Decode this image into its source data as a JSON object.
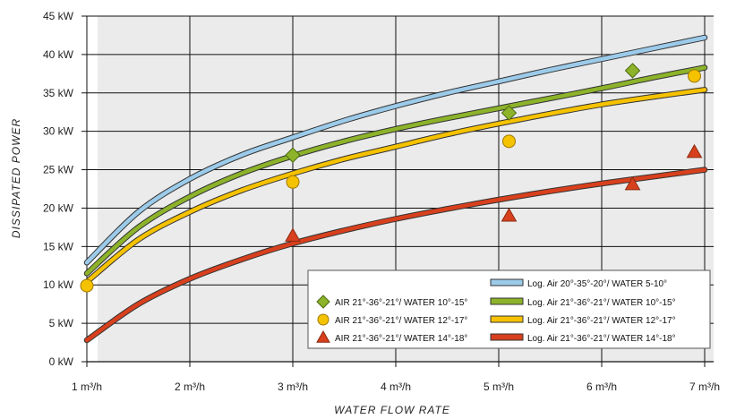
{
  "chart_data": {
    "type": "line",
    "xlabel": "WATER FLOW RATE",
    "ylabel": "DISSIPATED POWER",
    "xlim": [
      1,
      7
    ],
    "ylim": [
      0,
      45
    ],
    "x_ticks": [
      1,
      2,
      3,
      4,
      5,
      6,
      7
    ],
    "x_tick_labels": [
      "1 m³/h",
      "2 m³/h",
      "3 m³/h",
      "4 m³/h",
      "5 m³/h",
      "6 m³/h",
      "7 m³/h"
    ],
    "y_ticks": [
      0,
      5,
      10,
      15,
      20,
      25,
      30,
      35,
      40,
      45
    ],
    "y_tick_labels": [
      "0 kW",
      "5 kW",
      "10 kW",
      "15 kW",
      "20 kW",
      "25 kW",
      "30 kW",
      "35 kW",
      "40 kW",
      "45 kW"
    ],
    "grid": true,
    "legend_position": "bottom-right",
    "series": [
      {
        "name": "Log. Air 20°-35°-20°/ WATER 5-10°",
        "kind": "line",
        "color": "#9ccbea",
        "x": [
          1,
          1.5,
          2,
          2.5,
          3,
          3.5,
          4,
          4.5,
          5,
          5.5,
          6,
          6.5,
          7
        ],
        "values": [
          12.9,
          19.5,
          23.8,
          26.9,
          29.2,
          31.4,
          33.3,
          35.0,
          36.5,
          38.0,
          39.4,
          40.8,
          42.2
        ]
      },
      {
        "name": "Log. Air 21°-36°-21°/ WATER 10°-15°",
        "kind": "line",
        "color": "#8db32a",
        "x": [
          1,
          1.5,
          2,
          2.5,
          3,
          3.5,
          4,
          4.5,
          5,
          5.5,
          6,
          6.5,
          7
        ],
        "values": [
          11.5,
          17.5,
          21.5,
          24.5,
          26.8,
          28.7,
          30.3,
          31.7,
          33.0,
          34.3,
          35.6,
          37.0,
          38.3
        ]
      },
      {
        "name": "Log. Air 21°-36°-21°/ WATER 12°-17°",
        "kind": "line",
        "color": "#f5c200",
        "x": [
          1,
          1.5,
          2,
          2.5,
          3,
          3.5,
          4,
          4.5,
          5,
          5.5,
          6,
          6.5,
          7
        ],
        "values": [
          10.4,
          15.9,
          19.5,
          22.3,
          24.5,
          26.4,
          28.0,
          29.6,
          31.0,
          32.3,
          33.5,
          34.5,
          35.4
        ]
      },
      {
        "name": "Log. Air 21°-36°-21°/ WATER 14°-18°",
        "kind": "line",
        "color": "#d8401d",
        "x": [
          1,
          1.5,
          2,
          2.5,
          3,
          3.5,
          4,
          4.5,
          5,
          5.5,
          6,
          6.5,
          7
        ],
        "values": [
          2.8,
          7.5,
          10.8,
          13.3,
          15.4,
          17.1,
          18.6,
          19.9,
          21.1,
          22.2,
          23.2,
          24.1,
          25.0
        ]
      },
      {
        "name": "AIR 21°-36°-21°/ WATER 10°-15°",
        "kind": "scatter",
        "marker": "diamond",
        "color": "#8db32a",
        "x": [
          3,
          5.1,
          6.3
        ],
        "values": [
          26.9,
          32.4,
          37.9
        ]
      },
      {
        "name": "AIR 21°-36°-21°/ WATER 12°-17°",
        "kind": "scatter",
        "marker": "circle",
        "color": "#f5c200",
        "x": [
          1,
          3,
          5.1,
          6.9
        ],
        "values": [
          9.9,
          23.4,
          28.7,
          37.2
        ]
      },
      {
        "name": "AIR 21°-36°-21°/ WATER 14°-18°",
        "kind": "scatter",
        "marker": "triangle",
        "color": "#d8401d",
        "x": [
          3,
          5.1,
          6.3,
          6.9
        ],
        "values": [
          16.4,
          19.0,
          23.1,
          27.3
        ]
      }
    ],
    "legend_rows": [
      {
        "marker_series": null,
        "line_series": "Log. Air 20°-35°-20°/ WATER 5-10°"
      },
      {
        "marker_series": "AIR 21°-36°-21°/ WATER 10°-15°",
        "line_series": "Log. Air 21°-36°-21°/ WATER 10°-15°"
      },
      {
        "marker_series": "AIR 21°-36°-21°/ WATER 12°-17°",
        "line_series": "Log. Air 21°-36°-21°/ WATER 12°-17°"
      },
      {
        "marker_series": "AIR 21°-36°-21°/ WATER 14°-18°",
        "line_series": "Log. Air 21°-36°-21°/ WATER 14°-18°"
      }
    ]
  }
}
